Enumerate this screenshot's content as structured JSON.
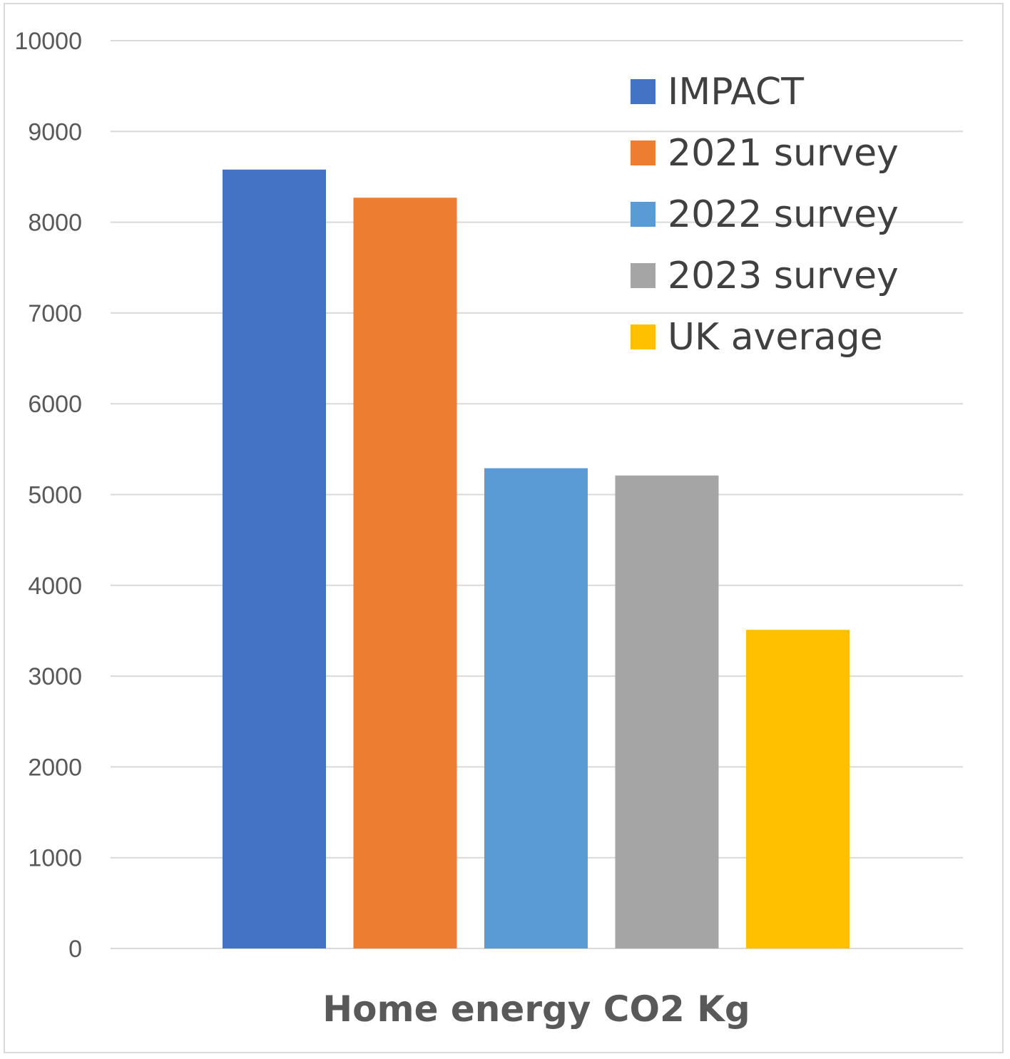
{
  "chart_data": {
    "type": "bar",
    "title": "",
    "xlabel": "Home energy CO2 Kg",
    "ylabel": "",
    "ylim": [
      0,
      10000
    ],
    "yticks": [
      "0",
      "1000",
      "2000",
      "3000",
      "4000",
      "5000",
      "6000",
      "7000",
      "8000",
      "9000",
      "10000"
    ],
    "grid": true,
    "legend_position": "top-right",
    "series": [
      {
        "name": "IMPACT",
        "values": [
          8580
        ],
        "color": "#4472C4"
      },
      {
        "name": "2021 survey",
        "values": [
          8270
        ],
        "color": "#ED7D31"
      },
      {
        "name": "2022 survey",
        "values": [
          5290
        ],
        "color": "#5B9BD5"
      },
      {
        "name": "2023 survey",
        "values": [
          5210
        ],
        "color": "#A5A5A5"
      },
      {
        "name": "UK average",
        "values": [
          3510
        ],
        "color": "#FFC000"
      }
    ]
  }
}
